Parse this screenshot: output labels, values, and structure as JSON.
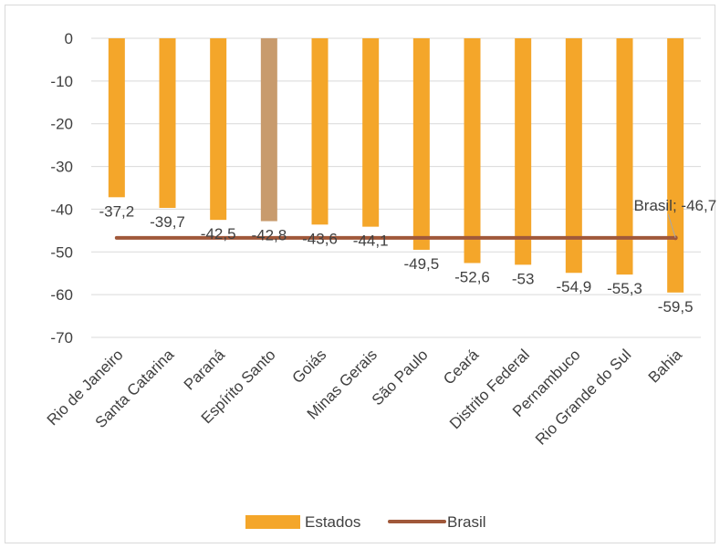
{
  "chart_data": {
    "type": "bar",
    "categories": [
      "Rio de Janeiro",
      "Santa Catarina",
      "Paraná",
      "Espírito Santo",
      "Goiás",
      "Minas Gerais",
      "São Paulo",
      "Ceará",
      "Distrito Federal",
      "Pernambuco",
      "Rio Grande do Sul",
      "Bahia"
    ],
    "series": [
      {
        "name": "Estados",
        "type": "bar",
        "values": [
          -37.2,
          -39.7,
          -42.5,
          -42.8,
          -43.6,
          -44.1,
          -49.5,
          -52.6,
          -53,
          -54.9,
          -55.3,
          -59.5
        ],
        "data_labels": [
          "-37,2",
          "-39,7",
          "-42,5",
          "-42,8",
          "-43,6",
          "-44,1",
          "-49,5",
          "-52,6",
          "-53",
          "-54,9",
          "-55,3",
          "-59,5"
        ],
        "color": "#F4A62A",
        "highlight_index": 3,
        "highlight_color": "#C89B6D"
      },
      {
        "name": "Brasil",
        "type": "line",
        "value": -46.7,
        "label": "Brasil; -46,7",
        "color": "#A0583A"
      }
    ],
    "ylim": [
      -70,
      0
    ],
    "yticks": [
      0,
      -10,
      -20,
      -30,
      -40,
      -50,
      -60,
      -70
    ],
    "ytick_labels": [
      "0",
      "-10",
      "-20",
      "-30",
      "-40",
      "-50",
      "-60",
      "-70"
    ],
    "grid": true,
    "legend": "bottom"
  }
}
